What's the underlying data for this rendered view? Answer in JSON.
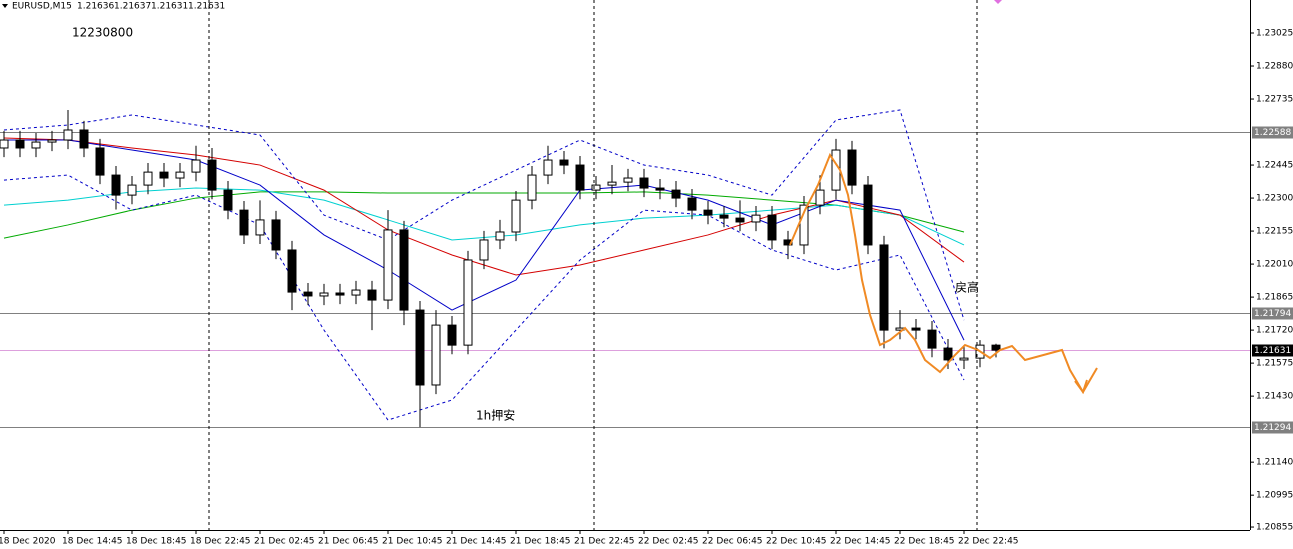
{
  "chart_data": {
    "type": "candlestick",
    "header": {
      "symbol": "EURUSD,M15",
      "ohlc": [
        1.21636,
        1.21637,
        1.21631,
        1.21631
      ]
    },
    "annotations": [
      "12230800",
      "1h押安",
      "戻高"
    ],
    "categories": [
      "18 Dec 2020",
      null,
      null,
      null,
      "18 Dec 14:45",
      null,
      null,
      null,
      "18 Dec 18:45",
      null,
      null,
      null,
      "18 Dec 22:45",
      null,
      null,
      null,
      "21 Dec 02:45",
      null,
      null,
      null,
      "21 Dec 06:45",
      null,
      null,
      null,
      "21 Dec 10:45",
      null,
      null,
      null,
      "21 Dec 14:45",
      null,
      null,
      null,
      "21 Dec 18:45",
      null,
      null,
      null,
      "21 Dec 22:45",
      null,
      null,
      null,
      "22 Dec 02:45",
      null,
      null,
      null,
      "22 Dec 06:45",
      null,
      null,
      null,
      "22 Dec 10:45",
      null,
      null,
      null,
      "22 Dec 14:45",
      null,
      null,
      null,
      "22 Dec 18:45",
      null,
      null,
      null,
      "22 Dec 22:45",
      null,
      null
    ],
    "open": [
      1.2252,
      1.22555,
      1.2252,
      1.22546,
      1.22555,
      1.22599,
      1.2252,
      1.22401,
      1.22313,
      1.22357,
      1.22414,
      1.22388,
      1.22414,
      1.22467,
      1.22335,
      1.22247,
      1.22138,
      1.22204,
      1.22072,
      1.21887,
      1.2187,
      1.21883,
      1.21874,
      1.21896,
      1.21852,
      1.2216,
      1.21808,
      1.21479,
      1.21742,
      1.21654,
      1.22028,
      1.22116,
      1.22151,
      1.22291,
      1.22401,
      1.22467,
      1.22445,
      1.22335,
      1.22357,
      1.2237,
      1.22388,
      1.22344,
      1.22335,
      1.223,
      1.22247,
      1.22225,
      1.22212,
      1.22195,
      1.22225,
      1.22116,
      1.22094,
      1.22269,
      1.22335,
      1.22511,
      1.22357,
      1.22094,
      1.2172,
      1.21729,
      1.2172,
      1.21641,
      1.21589,
      1.21597,
      1.21654
    ],
    "high": [
      1.22595,
      1.22595,
      1.22586,
      1.22595,
      1.22687,
      1.22639,
      1.2256,
      1.22441,
      1.22397,
      1.22454,
      1.22454,
      1.22454,
      1.2253,
      1.2252,
      1.22375,
      1.22287,
      1.2229,
      1.22244,
      1.22112,
      1.21927,
      1.21923,
      1.21923,
      1.21936,
      1.21936,
      1.22247,
      1.222,
      1.21848,
      1.21808,
      1.21782,
      1.22068,
      1.22156,
      1.22204,
      1.22331,
      1.22441,
      1.2253,
      1.22507,
      1.22485,
      1.22397,
      1.22445,
      1.22428,
      1.22428,
      1.22384,
      1.22375,
      1.2234,
      1.22287,
      1.22265,
      1.2229,
      1.22265,
      1.22265,
      1.22156,
      1.22309,
      1.224,
      1.2256,
      1.22551,
      1.22397,
      1.22134,
      1.21808,
      1.21769,
      1.2176,
      1.21681,
      1.21654,
      1.21676,
      1.2166
    ],
    "low": [
      1.2248,
      1.2248,
      1.2248,
      1.22506,
      1.22515,
      1.2248,
      1.22361,
      1.2225,
      1.22273,
      1.22317,
      1.22348,
      1.22348,
      1.22374,
      1.22295,
      1.22207,
      1.22098,
      1.22098,
      1.22032,
      1.21808,
      1.2183,
      1.2183,
      1.21834,
      1.21834,
      1.2172,
      1.21812,
      1.21742,
      1.21294,
      1.21439,
      1.21614,
      1.21614,
      1.21988,
      1.22076,
      1.22111,
      1.22251,
      1.22361,
      1.22405,
      1.22295,
      1.22295,
      1.22317,
      1.2233,
      1.22304,
      1.22295,
      1.2226,
      1.22207,
      1.22185,
      1.22172,
      1.22155,
      1.22155,
      1.22076,
      1.22032,
      1.22054,
      1.22229,
      1.22295,
      1.22317,
      1.22054,
      1.2164,
      1.2168,
      1.2168,
      1.21601,
      1.21549,
      1.21549,
      1.21557,
      1.216
    ],
    "close": [
      1.22555,
      1.2252,
      1.22546,
      1.22555,
      1.22599,
      1.2252,
      1.22401,
      1.22313,
      1.22357,
      1.22414,
      1.22388,
      1.22414,
      1.22467,
      1.22335,
      1.22247,
      1.22138,
      1.22204,
      1.22072,
      1.21887,
      1.2187,
      1.21883,
      1.21874,
      1.21896,
      1.21852,
      1.2216,
      1.21808,
      1.21479,
      1.21742,
      1.21654,
      1.22028,
      1.22116,
      1.22151,
      1.22291,
      1.22401,
      1.22467,
      1.22445,
      1.22335,
      1.22357,
      1.2237,
      1.22388,
      1.22344,
      1.22335,
      1.223,
      1.22247,
      1.22225,
      1.22212,
      1.22195,
      1.22225,
      1.22116,
      1.22094,
      1.22269,
      1.22335,
      1.22511,
      1.22357,
      1.22094,
      1.2172,
      1.21729,
      1.2172,
      1.21641,
      1.21589,
      1.21597,
      1.21654,
      1.21632
    ],
    "indicators": [
      {
        "color": "#00aa00",
        "dashed": false,
        "values": [
          1.22124,
          1.22182,
          1.22247,
          1.223,
          1.22327,
          1.22327,
          1.22322,
          1.22322,
          1.22322,
          1.22322,
          1.22327,
          1.22313,
          1.22291,
          1.22269,
          1.22225,
          1.22151
        ]
      },
      {
        "color": "#00d0d0",
        "dashed": false,
        "values": [
          1.22269,
          1.22291,
          1.22327,
          1.22344,
          1.22335,
          1.22291,
          1.22204,
          1.22116,
          1.22138,
          1.22182,
          1.22212,
          1.22225,
          1.22247,
          1.22269,
          1.22225,
          1.22094
        ]
      },
      {
        "color": "#d40000",
        "dashed": false,
        "values": [
          1.22564,
          1.22555,
          1.2252,
          1.22489,
          1.22445,
          1.22335,
          1.2216,
          1.2205,
          1.21962,
          1.22006,
          1.22072,
          1.22138,
          1.22225,
          1.22291,
          1.22225,
          1.22019
        ]
      },
      {
        "color": "#0000c8",
        "dashed": false,
        "values": [
          1.22555,
          1.22555,
          1.22511,
          1.22467,
          1.22357,
          1.22138,
          1.21984,
          1.21808,
          1.2194,
          1.22335,
          1.22357,
          1.22291,
          1.22182,
          1.22291,
          1.22247,
          1.21676
        ]
      },
      {
        "color": "#0000c8",
        "dashed": true,
        "values": [
          1.22599,
          1.22621,
          1.22665,
          1.22621,
          1.22577,
          1.22225,
          1.22116,
          1.22291,
          1.22423,
          1.22555,
          1.22445,
          1.22401,
          1.22313,
          1.22643,
          1.22687,
          1.21764
        ]
      },
      {
        "color": "#0000c8",
        "dashed": true,
        "values": [
          1.22379,
          1.22401,
          1.22247,
          1.22313,
          1.22182,
          1.2172,
          1.21325,
          1.21413,
          1.2172,
          1.22028,
          1.22247,
          1.22225,
          1.22072,
          1.21984,
          1.2205,
          1.21501
        ]
      }
    ],
    "hlines": [
      {
        "value": 1.22588,
        "color": "#808080"
      },
      {
        "value": 1.21794,
        "color": "#808080"
      },
      {
        "value": 1.21294,
        "color": "#808080"
      },
      {
        "value": 1.21631,
        "color": "#000000"
      }
    ],
    "ylim": [
      1.20842,
      1.2317
    ],
    "yticks": [
      1.23025,
      {
        "value": 1.2288,
        "label": "1.22880"
      },
      1.22735,
      1.22445,
      {
        "value": 1.223,
        "label": "1.22300"
      },
      1.22155,
      {
        "value": 1.2201,
        "label": "1.22010"
      },
      1.21865,
      {
        "value": 1.2172,
        "label": "1.21720"
      },
      1.21575,
      {
        "value": 1.2143,
        "label": "1.21430"
      },
      {
        "value": 1.2114,
        "label": "1.21140"
      },
      1.20995,
      1.20855
    ]
  }
}
